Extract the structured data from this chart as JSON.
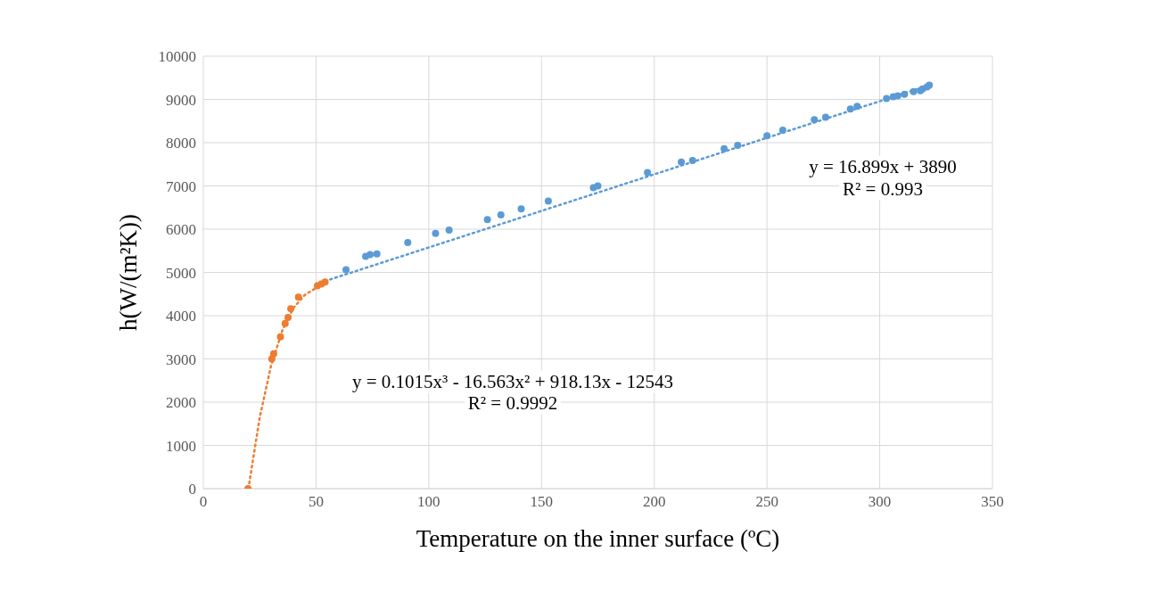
{
  "chart_data": {
    "type": "scatter",
    "xlabel": "Temperature on the inner surface (ºC)",
    "ylabel": "h(W/(m²K))",
    "xlim": [
      0,
      350
    ],
    "xticks": [
      0,
      50,
      100,
      150,
      200,
      250,
      300,
      350
    ],
    "ylim": [
      0,
      10000
    ],
    "yticks": [
      0,
      1000,
      2000,
      3000,
      4000,
      5000,
      6000,
      7000,
      8000,
      9000,
      10000
    ],
    "grid": true,
    "legend": false,
    "series": [
      {
        "color": "#ed7d31",
        "marker": "circle",
        "x": [
          19.8,
          30.4,
          31.2,
          34.2,
          36.3,
          37.6,
          38.8,
          42.2,
          50.6,
          52.3,
          54
        ],
        "values": [
          0,
          3000,
          3120,
          3510,
          3820,
          3960,
          4160,
          4430,
          4690,
          4730,
          4780
        ]
      },
      {
        "color": "#5b9bd5",
        "marker": "circle",
        "x": [
          63.3,
          72,
          74,
          77,
          90.7,
          103,
          109,
          126,
          132,
          141,
          153,
          173,
          175,
          197,
          212,
          217,
          231,
          237,
          250,
          257,
          271,
          276,
          287,
          290,
          303,
          306,
          308,
          311,
          315,
          318,
          319,
          321,
          322
        ],
        "values": [
          5060,
          5370,
          5410,
          5430,
          5690,
          5900,
          5980,
          6220,
          6330,
          6470,
          6650,
          6960,
          7000,
          7310,
          7550,
          7590,
          7860,
          7940,
          8160,
          8290,
          8530,
          8590,
          8780,
          8840,
          9020,
          9060,
          9080,
          9120,
          9180,
          9200,
          9240,
          9290,
          9330
        ]
      },
      {
        "type": "line",
        "color": "#ed7d31",
        "line_style": "dotted",
        "marker": "none",
        "x": [
          20,
          25,
          30,
          35,
          40,
          45,
          50,
          54
        ],
        "values": [
          0,
          1640,
          2830,
          3650,
          4180,
          4480,
          4640,
          4720
        ]
      },
      {
        "type": "line",
        "color": "#5b9bd5",
        "line_style": "dotted",
        "marker": "none",
        "x": [
          54,
          322
        ],
        "values": [
          4800,
          9330
        ]
      }
    ],
    "annotations": [
      "y = 0.1015x³ - 16.563x² + 918.13x - 12543",
      "R² = 0.9992",
      "y = 16.899x + 3890",
      "R² = 0.993"
    ]
  }
}
